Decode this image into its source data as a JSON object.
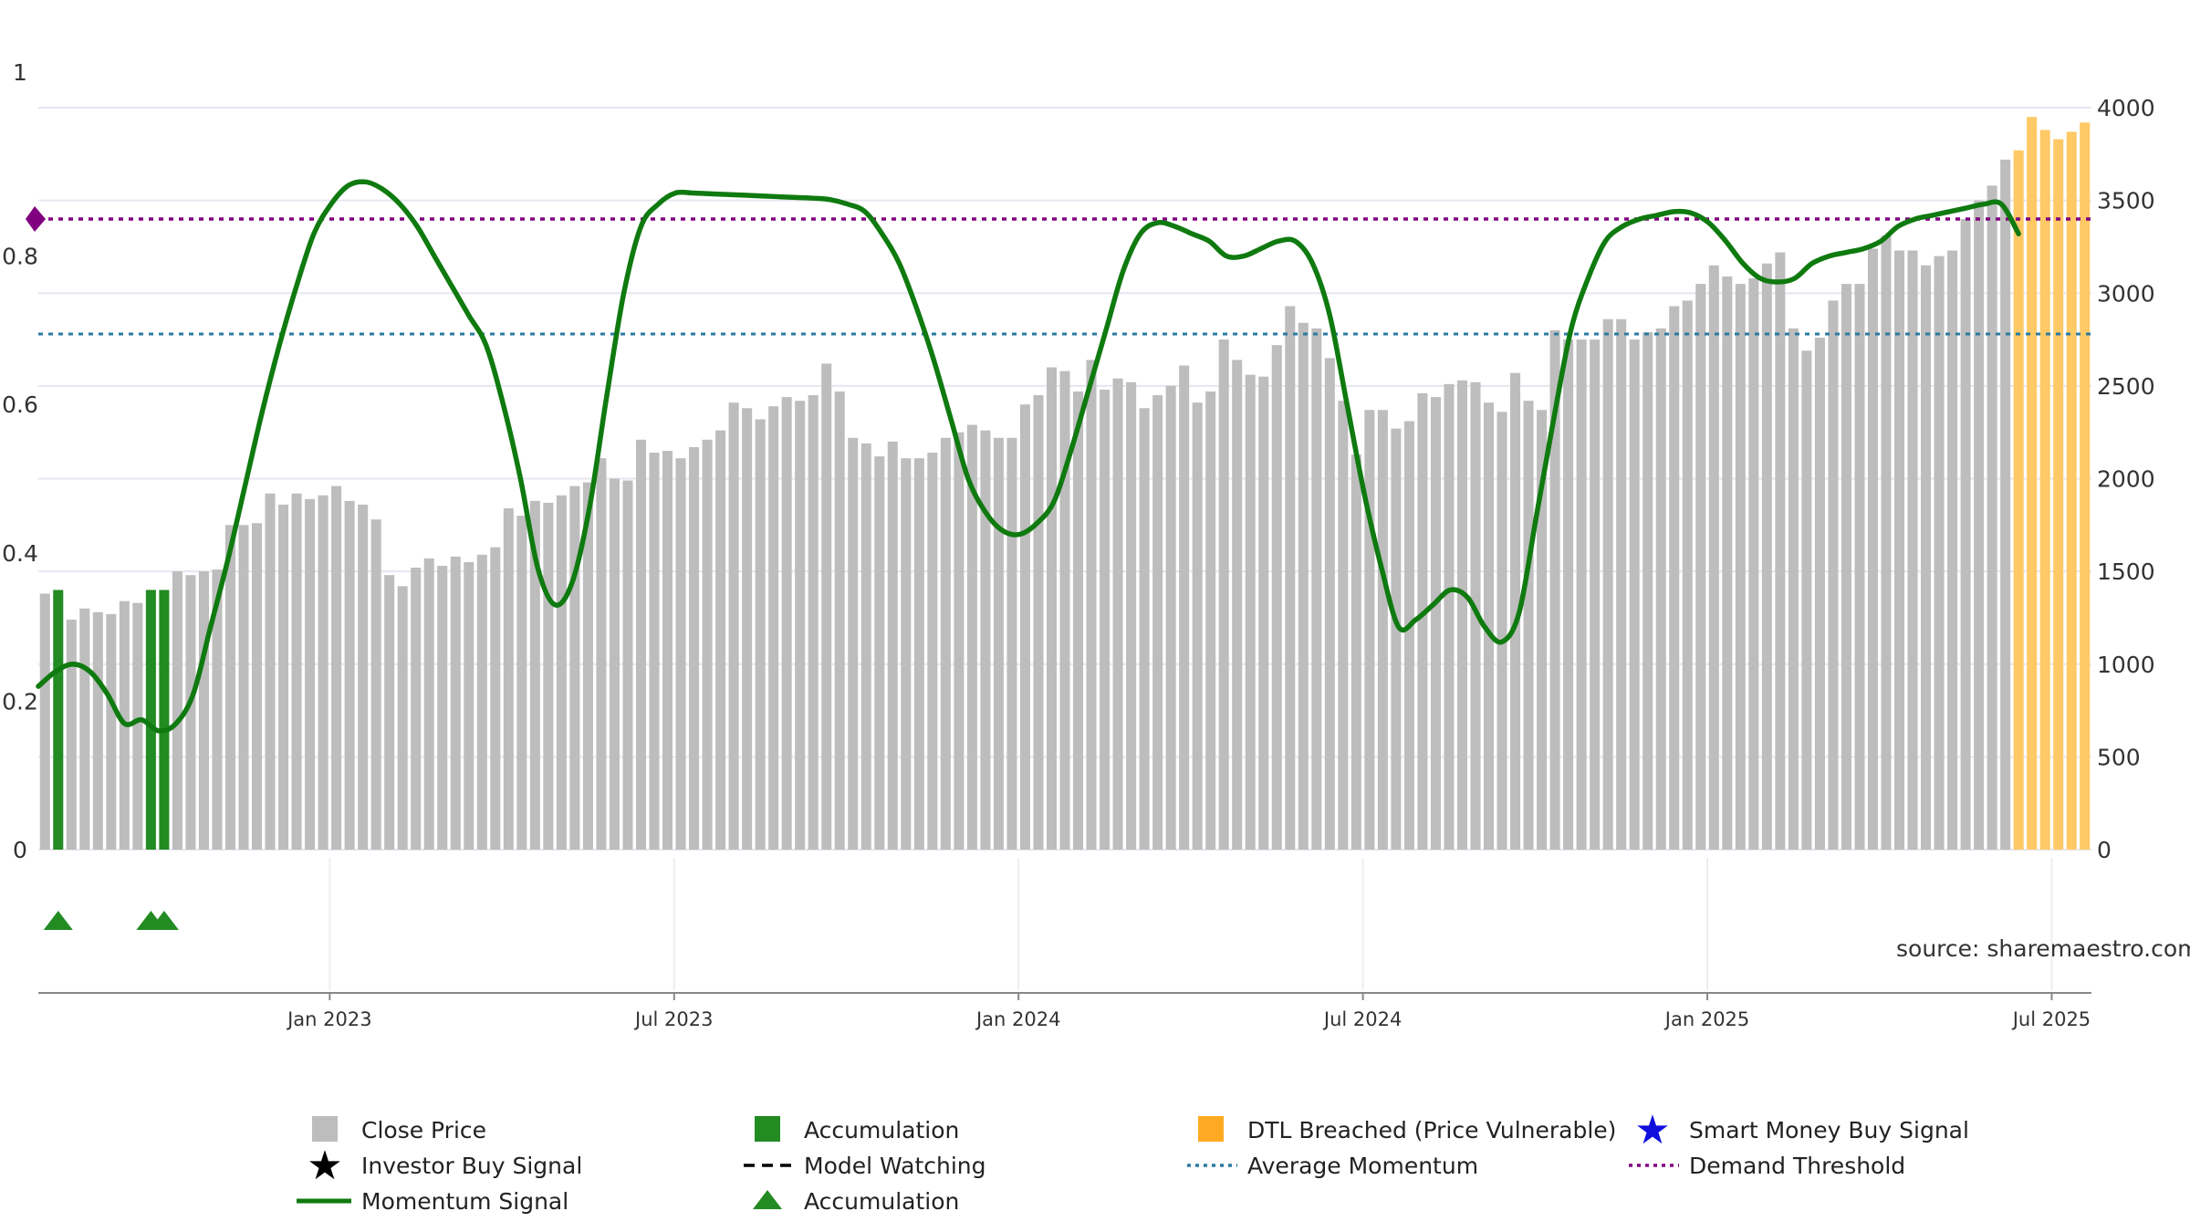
{
  "chart_data": {
    "type": "bar",
    "title": "",
    "source_label": "source: sharemaestro.com",
    "x_ticks": [
      "Jan 2023",
      "Jul 2023",
      "Jan 2024",
      "Jul 2024",
      "Jan 2025",
      "Jul 2025"
    ],
    "x_tick_weeks": [
      22,
      48,
      74,
      100,
      126,
      152
    ],
    "left_axis": {
      "min": 0,
      "max": 1,
      "ticks": [
        "0",
        "0.2",
        "0.4",
        "0.6",
        "0.8",
        "1"
      ],
      "values": [
        0,
        0.2,
        0.4,
        0.6,
        0.8,
        1.0
      ]
    },
    "right_axis": {
      "min": 0,
      "max": 4000,
      "ticks": [
        "0",
        "500",
        "1000",
        "1500",
        "2000",
        "2500",
        "3000",
        "3500",
        "4000"
      ],
      "values": [
        0,
        500,
        1000,
        1500,
        2000,
        2500,
        3000,
        3500,
        4000
      ]
    },
    "price_bars": {
      "values": [
        1380,
        1400,
        1240,
        1300,
        1280,
        1270,
        1340,
        1330,
        1400,
        1400,
        1500,
        1480,
        1500,
        1510,
        1750,
        1750,
        1760,
        1920,
        1860,
        1920,
        1890,
        1910,
        1960,
        1880,
        1860,
        1780,
        1480,
        1420,
        1520,
        1570,
        1530,
        1580,
        1550,
        1590,
        1630,
        1840,
        1800,
        1880,
        1870,
        1910,
        1960,
        1980,
        2110,
        2000,
        1990,
        2210,
        2140,
        2150,
        2110,
        2170,
        2210,
        2260,
        2410,
        2380,
        2320,
        2390,
        2440,
        2420,
        2450,
        2620,
        2470,
        2220,
        2190,
        2120,
        2200,
        2110,
        2110,
        2140,
        2220,
        2250,
        2290,
        2260,
        2220,
        2220,
        2400,
        2450,
        2600,
        2580,
        2470,
        2640,
        2480,
        2540,
        2520,
        2380,
        2450,
        2500,
        2610,
        2410,
        2470,
        2750,
        2640,
        2560,
        2550,
        2720,
        2930,
        2840,
        2810,
        2650,
        2420,
        2130,
        2370,
        2370,
        2270,
        2310,
        2460,
        2440,
        2510,
        2530,
        2520,
        2410,
        2360,
        2570,
        2420,
        2370,
        2800,
        2750,
        2750,
        2750,
        2860,
        2860,
        2750,
        2790,
        2810,
        2930,
        2960,
        3050,
        3150,
        3090,
        3050,
        3080,
        3160,
        3220,
        2810,
        2690,
        2760,
        2960,
        3050,
        3050,
        3240,
        3310,
        3230,
        3230,
        3150,
        3200,
        3230,
        3400,
        3500,
        3580,
        3720,
        3770,
        3950,
        3880,
        3830,
        3870,
        3920
      ],
      "accumulation_weeks": [
        1,
        8,
        9
      ],
      "breached_start": 149
    },
    "momentum": [
      0.22,
      0.24,
      0.25,
      0.24,
      0.21,
      0.17,
      0.175,
      0.16,
      0.17,
      0.21,
      0.3,
      0.39,
      0.49,
      0.59,
      0.68,
      0.76,
      0.83,
      0.87,
      0.895,
      0.9,
      0.89,
      0.87,
      0.84,
      0.8,
      0.76,
      0.72,
      0.68,
      0.6,
      0.5,
      0.38,
      0.33,
      0.36,
      0.46,
      0.61,
      0.75,
      0.84,
      0.87,
      0.885,
      0.885,
      0.884,
      0.883,
      0.882,
      0.881,
      0.88,
      0.879,
      0.878,
      0.876,
      0.87,
      0.86,
      0.83,
      0.79,
      0.73,
      0.66,
      0.58,
      0.5,
      0.455,
      0.43,
      0.425,
      0.44,
      0.47,
      0.54,
      0.62,
      0.7,
      0.78,
      0.83,
      0.845,
      0.84,
      0.83,
      0.82,
      0.8,
      0.8,
      0.81,
      0.82,
      0.82,
      0.79,
      0.72,
      0.6,
      0.48,
      0.38,
      0.3,
      0.31,
      0.33,
      0.35,
      0.34,
      0.3,
      0.28,
      0.32,
      0.45,
      0.58,
      0.7,
      0.77,
      0.82,
      0.84,
      0.85,
      0.855,
      0.86,
      0.858,
      0.845,
      0.82,
      0.79,
      0.77,
      0.765,
      0.77,
      0.79,
      0.8,
      0.805,
      0.81,
      0.82,
      0.84,
      0.85,
      0.855,
      0.86,
      0.865,
      0.87,
      0.87,
      0.83
    ],
    "momentum_weeks_step": 1.3,
    "demand_threshold": 0.85,
    "average_momentum": 0.695,
    "accumulation_markers": [
      1,
      8,
      9
    ],
    "legend": [
      {
        "key": "close",
        "label": "Close Price"
      },
      {
        "key": "accum_bar",
        "label": "Accumulation"
      },
      {
        "key": "dtl",
        "label": "DTL Breached (Price Vulnerable)"
      },
      {
        "key": "smart",
        "label": "Smart Money Buy Signal"
      },
      {
        "key": "investor",
        "label": "Investor Buy Signal"
      },
      {
        "key": "watching",
        "label": "Model Watching"
      },
      {
        "key": "avgmom",
        "label": "Average Momentum"
      },
      {
        "key": "demand",
        "label": "Demand Threshold"
      },
      {
        "key": "momentum",
        "label": "Momentum Signal"
      },
      {
        "key": "accum_tri",
        "label": "Accumulation"
      }
    ],
    "colors": {
      "price": "#bdbdbd",
      "accumulation": "#228b22",
      "breached": "#ffc966",
      "momentum": "#0f7a0f",
      "demand": "#800080",
      "average": "#2a7aa0",
      "smart": "#1010dd",
      "grid": "#e6e6f0"
    }
  }
}
